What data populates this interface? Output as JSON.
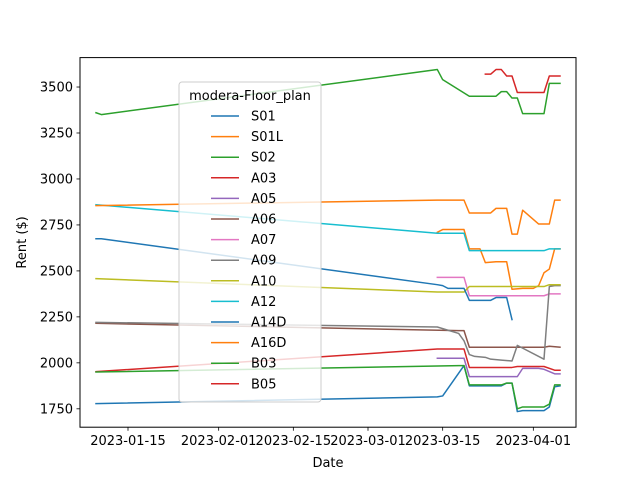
{
  "chart_data": {
    "type": "line",
    "xlabel": "Date",
    "ylabel": "Rent ($)",
    "xlim": [
      "2023-01-06",
      "2023-04-09"
    ],
    "ylim": [
      1650,
      3660
    ],
    "x_ticks": [
      {
        "date": "2023-01-15",
        "label": "2023-01-15"
      },
      {
        "date": "2023-02-01",
        "label": "2023-02-01"
      },
      {
        "date": "2023-02-15",
        "label": "2023-02-15"
      },
      {
        "date": "2023-03-01",
        "label": "2023-03-01"
      },
      {
        "date": "2023-03-15",
        "label": "2023-03-15"
      },
      {
        "date": "2023-04-01",
        "label": "2023-04-01"
      }
    ],
    "y_ticks": [
      1750,
      2000,
      2250,
      2500,
      2750,
      3000,
      3250,
      3500
    ],
    "y_tick_labels": [
      "1750",
      "2000",
      "2250",
      "2500",
      "2750",
      "3000",
      "3250",
      "3500"
    ],
    "grid": false,
    "legend": {
      "title": "modera-Floor_plan",
      "placement": "upper left"
    },
    "series": [
      {
        "name": "S01",
        "color": "#1f77b4",
        "points": [
          [
            "2023-01-09",
            1778
          ],
          [
            "2023-03-14",
            1815
          ],
          [
            "2023-03-15",
            1820
          ],
          [
            "2023-03-19",
            1985
          ],
          [
            "2023-03-20",
            1875
          ],
          [
            "2023-03-26",
            1875
          ],
          [
            "2023-03-27",
            1890
          ],
          [
            "2023-03-28",
            1890
          ],
          [
            "2023-03-29",
            1735
          ],
          [
            "2023-03-30",
            1740
          ],
          [
            "2023-04-03",
            1740
          ],
          [
            "2023-04-04",
            1760
          ],
          [
            "2023-04-05",
            1870
          ],
          [
            "2023-04-06",
            1875
          ]
        ]
      },
      {
        "name": "S01L",
        "color": "#ff7f0e",
        "points": [
          [
            "2023-03-14",
            2710
          ],
          [
            "2023-03-15",
            2725
          ],
          [
            "2023-03-19",
            2725
          ],
          [
            "2023-03-20",
            2620
          ],
          [
            "2023-03-22",
            2620
          ],
          [
            "2023-03-23",
            2545
          ],
          [
            "2023-03-25",
            2550
          ],
          [
            "2023-03-27",
            2550
          ],
          [
            "2023-03-28",
            2400
          ],
          [
            "2023-03-30",
            2405
          ],
          [
            "2023-04-01",
            2405
          ],
          [
            "2023-04-02",
            2420
          ],
          [
            "2023-04-03",
            2490
          ],
          [
            "2023-04-04",
            2510
          ],
          [
            "2023-04-05",
            2620
          ],
          [
            "2023-04-06",
            2620
          ]
        ]
      },
      {
        "name": "S02",
        "color": "#2ca02c",
        "points": [
          [
            "2023-01-09",
            3360
          ],
          [
            "2023-01-10",
            3350
          ],
          [
            "2023-03-14",
            3595
          ],
          [
            "2023-03-15",
            3540
          ],
          [
            "2023-03-20",
            3450
          ],
          [
            "2023-03-25",
            3450
          ],
          [
            "2023-03-26",
            3475
          ],
          [
            "2023-03-27",
            3475
          ],
          [
            "2023-03-28",
            3440
          ],
          [
            "2023-03-29",
            3440
          ],
          [
            "2023-03-30",
            3355
          ],
          [
            "2023-04-03",
            3355
          ],
          [
            "2023-04-04",
            3520
          ],
          [
            "2023-04-06",
            3520
          ]
        ]
      },
      {
        "name": "A03",
        "color": "#d62728",
        "points": [
          [
            "2023-01-09",
            1952
          ],
          [
            "2023-03-14",
            2075
          ],
          [
            "2023-03-19",
            2075
          ],
          [
            "2023-03-20",
            1975
          ],
          [
            "2023-03-28",
            1975
          ],
          [
            "2023-03-29",
            1980
          ],
          [
            "2023-04-03",
            1980
          ],
          [
            "2023-04-05",
            1960
          ],
          [
            "2023-04-06",
            1960
          ]
        ]
      },
      {
        "name": "A05",
        "color": "#9467bd",
        "points": [
          [
            "2023-03-14",
            2025
          ],
          [
            "2023-03-19",
            2025
          ],
          [
            "2023-03-20",
            1925
          ],
          [
            "2023-03-29",
            1925
          ],
          [
            "2023-03-30",
            1970
          ],
          [
            "2023-04-02",
            1970
          ],
          [
            "2023-04-03",
            1965
          ],
          [
            "2023-04-05",
            1940
          ],
          [
            "2023-04-06",
            1940
          ]
        ]
      },
      {
        "name": "A06",
        "color": "#8c564b",
        "points": [
          [
            "2023-01-09",
            2215
          ],
          [
            "2023-03-18",
            2175
          ],
          [
            "2023-03-19",
            2175
          ],
          [
            "2023-03-20",
            2085
          ],
          [
            "2023-04-03",
            2085
          ],
          [
            "2023-04-04",
            2090
          ],
          [
            "2023-04-06",
            2085
          ]
        ]
      },
      {
        "name": "A07",
        "color": "#e377c2",
        "points": [
          [
            "2023-03-14",
            2465
          ],
          [
            "2023-03-19",
            2465
          ],
          [
            "2023-03-20",
            2365
          ],
          [
            "2023-04-03",
            2365
          ],
          [
            "2023-04-04",
            2375
          ],
          [
            "2023-04-06",
            2375
          ]
        ]
      },
      {
        "name": "A09",
        "color": "#7f7f7f",
        "points": [
          [
            "2023-01-09",
            2220
          ],
          [
            "2023-03-14",
            2195
          ],
          [
            "2023-03-18",
            2160
          ],
          [
            "2023-03-19",
            2120
          ],
          [
            "2023-03-20",
            2045
          ],
          [
            "2023-03-21",
            2035
          ],
          [
            "2023-03-23",
            2030
          ],
          [
            "2023-03-24",
            2020
          ],
          [
            "2023-03-26",
            2015
          ],
          [
            "2023-03-28",
            2010
          ],
          [
            "2023-03-29",
            2095
          ],
          [
            "2023-04-03",
            2020
          ],
          [
            "2023-04-04",
            2415
          ],
          [
            "2023-04-05",
            2420
          ],
          [
            "2023-04-06",
            2420
          ]
        ]
      },
      {
        "name": "A10",
        "color": "#bcbd22",
        "points": [
          [
            "2023-01-09",
            2458
          ],
          [
            "2023-03-14",
            2385
          ],
          [
            "2023-03-19",
            2385
          ],
          [
            "2023-03-20",
            2415
          ],
          [
            "2023-04-03",
            2415
          ],
          [
            "2023-04-04",
            2425
          ],
          [
            "2023-04-06",
            2425
          ]
        ]
      },
      {
        "name": "A12",
        "color": "#17becf",
        "points": [
          [
            "2023-01-09",
            2860
          ],
          [
            "2023-03-14",
            2705
          ],
          [
            "2023-03-19",
            2705
          ],
          [
            "2023-03-20",
            2610
          ],
          [
            "2023-04-03",
            2610
          ],
          [
            "2023-04-04",
            2620
          ],
          [
            "2023-04-06",
            2620
          ]
        ]
      },
      {
        "name": "A14D",
        "color": "#1f77b4",
        "points": [
          [
            "2023-01-09",
            2675
          ],
          [
            "2023-01-10",
            2675
          ],
          [
            "2023-03-14",
            2425
          ],
          [
            "2023-03-15",
            2420
          ],
          [
            "2023-03-16",
            2405
          ],
          [
            "2023-03-19",
            2405
          ],
          [
            "2023-03-20",
            2340
          ],
          [
            "2023-03-24",
            2340
          ],
          [
            "2023-03-25",
            2355
          ],
          [
            "2023-03-27",
            2355
          ],
          [
            "2023-03-28",
            2235
          ]
        ]
      },
      {
        "name": "A16D",
        "color": "#ff7f0e",
        "points": [
          [
            "2023-01-09",
            2855
          ],
          [
            "2023-03-14",
            2885
          ],
          [
            "2023-03-19",
            2885
          ],
          [
            "2023-03-20",
            2815
          ],
          [
            "2023-03-24",
            2815
          ],
          [
            "2023-03-25",
            2840
          ],
          [
            "2023-03-27",
            2840
          ],
          [
            "2023-03-28",
            2700
          ],
          [
            "2023-03-29",
            2700
          ],
          [
            "2023-03-30",
            2830
          ],
          [
            "2023-04-02",
            2755
          ],
          [
            "2023-04-04",
            2755
          ],
          [
            "2023-04-05",
            2885
          ],
          [
            "2023-04-06",
            2885
          ]
        ]
      },
      {
        "name": "B03",
        "color": "#2ca02c",
        "points": [
          [
            "2023-01-09",
            1950
          ],
          [
            "2023-03-18",
            1985
          ],
          [
            "2023-03-19",
            1985
          ],
          [
            "2023-03-20",
            1880
          ],
          [
            "2023-03-26",
            1880
          ],
          [
            "2023-03-27",
            1890
          ],
          [
            "2023-03-28",
            1890
          ],
          [
            "2023-03-29",
            1750
          ],
          [
            "2023-03-30",
            1760
          ],
          [
            "2023-04-03",
            1760
          ],
          [
            "2023-04-04",
            1775
          ],
          [
            "2023-04-05",
            1880
          ],
          [
            "2023-04-06",
            1880
          ]
        ]
      },
      {
        "name": "B05",
        "color": "#d62728",
        "points": [
          [
            "2023-03-23",
            3570
          ],
          [
            "2023-03-24",
            3570
          ],
          [
            "2023-03-25",
            3595
          ],
          [
            "2023-03-26",
            3595
          ],
          [
            "2023-03-27",
            3560
          ],
          [
            "2023-03-28",
            3560
          ],
          [
            "2023-03-29",
            3470
          ],
          [
            "2023-04-03",
            3470
          ],
          [
            "2023-04-04",
            3560
          ],
          [
            "2023-04-06",
            3560
          ]
        ]
      }
    ]
  }
}
